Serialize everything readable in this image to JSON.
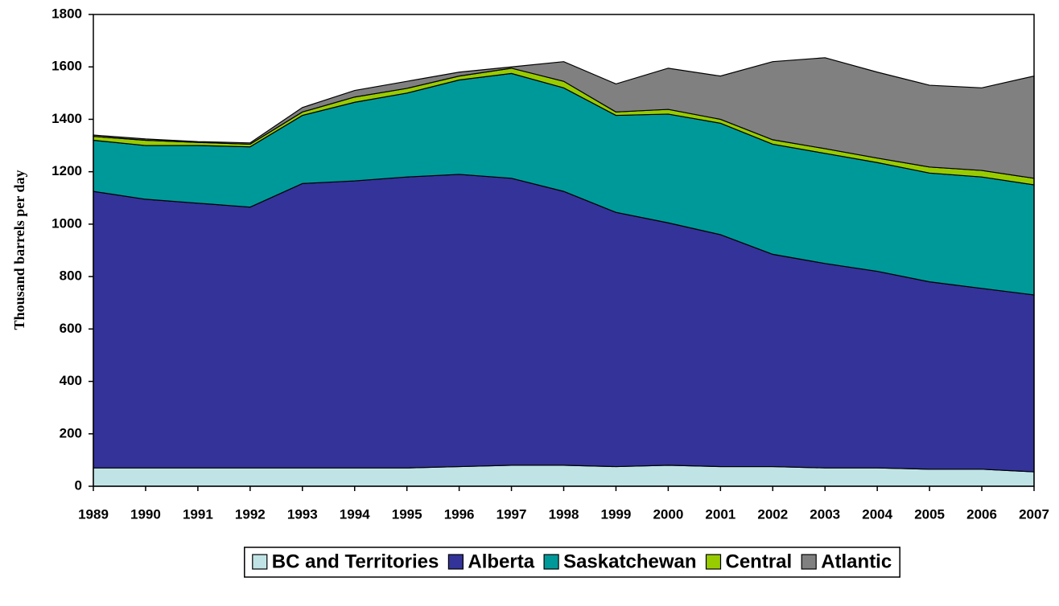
{
  "chart_data": {
    "type": "stacked_area",
    "y_label": "Thousand barrels per day",
    "x": [
      1989,
      1990,
      1991,
      1992,
      1993,
      1994,
      1995,
      1996,
      1997,
      1998,
      1999,
      2000,
      2001,
      2002,
      2003,
      2004,
      2005,
      2006,
      2007
    ],
    "xlim": [
      1989,
      2007
    ],
    "xticks": [
      1989,
      1990,
      1991,
      1992,
      1993,
      1994,
      1995,
      1996,
      1997,
      1998,
      1999,
      2000,
      2001,
      2002,
      2003,
      2004,
      2005,
      2006,
      2007
    ],
    "ylim": [
      0,
      1800
    ],
    "yticks": [
      0,
      200,
      400,
      600,
      800,
      1000,
      1200,
      1400,
      1600,
      1800
    ],
    "legend": "bottom",
    "series": [
      {
        "name": "BC and Territories",
        "color": "#c0e4e6",
        "values": [
          70,
          70,
          70,
          70,
          70,
          70,
          70,
          75,
          80,
          80,
          75,
          80,
          75,
          75,
          70,
          70,
          65,
          65,
          55
        ]
      },
      {
        "name": "Alberta",
        "color": "#333399",
        "values": [
          1055,
          1025,
          1010,
          995,
          1085,
          1095,
          1110,
          1115,
          1095,
          1045,
          970,
          925,
          885,
          810,
          780,
          750,
          715,
          690,
          675
        ]
      },
      {
        "name": "Saskatchewan",
        "color": "#009999",
        "values": [
          195,
          205,
          220,
          230,
          260,
          300,
          320,
          360,
          400,
          395,
          370,
          415,
          425,
          420,
          420,
          415,
          415,
          425,
          420
        ]
      },
      {
        "name": "Central",
        "color": "#99cc00",
        "values": [
          15,
          20,
          12,
          10,
          13,
          20,
          18,
          15,
          20,
          25,
          13,
          18,
          15,
          17,
          18,
          17,
          23,
          25,
          25
        ]
      },
      {
        "name": "Atlantic",
        "color": "#808080",
        "values": [
          5,
          5,
          3,
          5,
          17,
          25,
          27,
          15,
          5,
          75,
          107,
          157,
          165,
          298,
          347,
          328,
          312,
          315,
          390
        ]
      }
    ]
  }
}
